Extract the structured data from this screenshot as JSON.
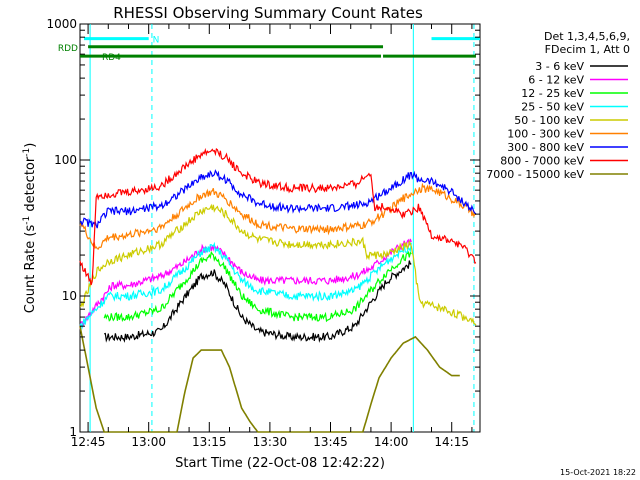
{
  "chart_data": {
    "type": "line",
    "title": "RHESSI Observing Summary Count Rates",
    "xlabel": "Start Time (22-Oct-08 12:42:22)",
    "ylabel_main": "Count Rate (s",
    "ylabel_sup1": "-1",
    "ylabel_mid": " detector",
    "ylabel_sup2": "-1",
    "ylabel_end": ")",
    "y_scale": "log",
    "ylim": [
      1,
      1000
    ],
    "xlim_minutes": [
      -2,
      97
    ],
    "x_ticks": [
      {
        "min": 0,
        "label": "12:45"
      },
      {
        "min": 15,
        "label": "13:00"
      },
      {
        "min": 30,
        "label": "13:15"
      },
      {
        "min": 45,
        "label": "13:30"
      },
      {
        "min": 60,
        "label": "13:45"
      },
      {
        "min": 75,
        "label": "14:00"
      },
      {
        "min": 90,
        "label": "14:15"
      }
    ],
    "y_ticks": [
      {
        "v": 1,
        "label": "1"
      },
      {
        "v": 10,
        "label": "10"
      },
      {
        "v": 100,
        "label": "100"
      },
      {
        "v": 1000,
        "label": "1000"
      }
    ],
    "legend_header": [
      "Det 1,3,4,5,6,9,",
      "FDecim 1, Att 0"
    ],
    "legend_position": "right, outside plot",
    "timestamp": "15-Oct-2021 18:22",
    "flags": [
      {
        "label": "N",
        "color": "#00ffff",
        "segments": [
          [
            -1,
            15
          ],
          [
            85,
            97
          ]
        ]
      },
      {
        "label": "RDD",
        "color": "#008000",
        "segments": [
          [
            0,
            73
          ]
        ]
      },
      {
        "label": "RD4",
        "color": "#008000",
        "segments": [
          [
            -2,
            72.5
          ],
          [
            73,
            96
          ]
        ]
      }
    ],
    "vertical_lines": [
      {
        "min": 0.5,
        "style": "solid",
        "color": "#00ffff"
      },
      {
        "min": 15.8,
        "style": "dashed",
        "color": "#00ffff"
      },
      {
        "min": 80.5,
        "style": "solid",
        "color": "#00ffff"
      },
      {
        "min": 95.5,
        "style": "dashed",
        "color": "#00ffff"
      }
    ],
    "series": [
      {
        "name": "3 - 6 keV",
        "color": "#000000",
        "points": [
          [
            4,
            5
          ],
          [
            10,
            5
          ],
          [
            18,
            5.5
          ],
          [
            23,
            9
          ],
          [
            28,
            14
          ],
          [
            31,
            15
          ],
          [
            34,
            12
          ],
          [
            38,
            7
          ],
          [
            42,
            5.5
          ],
          [
            50,
            5
          ],
          [
            60,
            5
          ],
          [
            66,
            6
          ],
          [
            70,
            9
          ],
          [
            74,
            13
          ],
          [
            78,
            16
          ],
          [
            80,
            17.5
          ]
        ]
      },
      {
        "name": "6 - 12 keV",
        "color": "#ff00ff",
        "points": [
          [
            -2,
            6
          ],
          [
            6,
            12
          ],
          [
            10,
            12
          ],
          [
            18,
            14
          ],
          [
            23,
            17
          ],
          [
            28,
            22
          ],
          [
            31,
            23
          ],
          [
            34,
            20
          ],
          [
            38,
            15
          ],
          [
            42,
            13
          ],
          [
            50,
            13
          ],
          [
            60,
            13
          ],
          [
            66,
            14
          ],
          [
            70,
            16
          ],
          [
            74,
            20
          ],
          [
            78,
            24
          ],
          [
            80,
            25
          ]
        ]
      },
      {
        "name": "12 - 25 keV",
        "color": "#00ff00",
        "points": [
          [
            4,
            7
          ],
          [
            10,
            7
          ],
          [
            18,
            8
          ],
          [
            23,
            12
          ],
          [
            28,
            18
          ],
          [
            31,
            20
          ],
          [
            34,
            16
          ],
          [
            38,
            10
          ],
          [
            42,
            8
          ],
          [
            50,
            7
          ],
          [
            60,
            7
          ],
          [
            66,
            8
          ],
          [
            70,
            11
          ],
          [
            74,
            15
          ],
          [
            78,
            19
          ],
          [
            80,
            20
          ]
        ]
      },
      {
        "name": "25 - 50 keV",
        "color": "#00ffff",
        "points": [
          [
            -2,
            6
          ],
          [
            5,
            10
          ],
          [
            10,
            10
          ],
          [
            18,
            11
          ],
          [
            23,
            15
          ],
          [
            28,
            21
          ],
          [
            31,
            23
          ],
          [
            34,
            19
          ],
          [
            38,
            13
          ],
          [
            42,
            11
          ],
          [
            50,
            10
          ],
          [
            60,
            10
          ],
          [
            66,
            11
          ],
          [
            70,
            14
          ],
          [
            74,
            18
          ],
          [
            78,
            22
          ],
          [
            80,
            23
          ]
        ]
      },
      {
        "name": "50 - 100 keV",
        "color": "#cccc00",
        "points": [
          [
            -2,
            8
          ],
          [
            2,
            15
          ],
          [
            5,
            18
          ],
          [
            10,
            20
          ],
          [
            18,
            24
          ],
          [
            23,
            32
          ],
          [
            28,
            42
          ],
          [
            31,
            45
          ],
          [
            34,
            40
          ],
          [
            38,
            30
          ],
          [
            42,
            26
          ],
          [
            50,
            24
          ],
          [
            60,
            24
          ],
          [
            68,
            25
          ],
          [
            69,
            20
          ],
          [
            74,
            20
          ],
          [
            78,
            23
          ],
          [
            80,
            24
          ],
          [
            82,
            9
          ],
          [
            88,
            8
          ],
          [
            93,
            7
          ],
          [
            96,
            6.5
          ]
        ]
      },
      {
        "name": "100 - 300 keV",
        "color": "#ff8000",
        "points": [
          [
            -2,
            35
          ],
          [
            2,
            22
          ],
          [
            5,
            27
          ],
          [
            10,
            28
          ],
          [
            18,
            32
          ],
          [
            23,
            42
          ],
          [
            28,
            55
          ],
          [
            31,
            58
          ],
          [
            34,
            52
          ],
          [
            38,
            40
          ],
          [
            42,
            34
          ],
          [
            50,
            31
          ],
          [
            60,
            31
          ],
          [
            68,
            33
          ],
          [
            70,
            35
          ],
          [
            74,
            42
          ],
          [
            78,
            52
          ],
          [
            82,
            62
          ],
          [
            86,
            60
          ],
          [
            90,
            52
          ],
          [
            94,
            44
          ],
          [
            96,
            38
          ]
        ]
      },
      {
        "name": "300 - 800 keV",
        "color": "#0000ff",
        "points": [
          [
            -2,
            36
          ],
          [
            2,
            33
          ],
          [
            5,
            42
          ],
          [
            10,
            42
          ],
          [
            18,
            46
          ],
          [
            23,
            58
          ],
          [
            28,
            75
          ],
          [
            31,
            80
          ],
          [
            34,
            72
          ],
          [
            38,
            56
          ],
          [
            42,
            48
          ],
          [
            50,
            44
          ],
          [
            60,
            44
          ],
          [
            68,
            47
          ],
          [
            70,
            50
          ],
          [
            74,
            60
          ],
          [
            78,
            72
          ],
          [
            80,
            78
          ],
          [
            82,
            72
          ],
          [
            86,
            68
          ],
          [
            90,
            58
          ],
          [
            94,
            46
          ],
          [
            96,
            40
          ]
        ]
      },
      {
        "name": "800 - 7000 keV",
        "color": "#ff0000",
        "points": [
          [
            -2,
            18
          ],
          [
            1,
            12
          ],
          [
            2,
            55
          ],
          [
            10,
            58
          ],
          [
            18,
            64
          ],
          [
            23,
            85
          ],
          [
            28,
            110
          ],
          [
            31,
            118
          ],
          [
            34,
            105
          ],
          [
            38,
            80
          ],
          [
            42,
            68
          ],
          [
            50,
            62
          ],
          [
            60,
            62
          ],
          [
            66,
            66
          ],
          [
            70,
            80
          ],
          [
            71,
            45
          ],
          [
            74,
            45
          ],
          [
            78,
            40
          ],
          [
            82,
            45
          ],
          [
            85,
            28
          ],
          [
            88,
            26
          ],
          [
            92,
            24
          ],
          [
            96,
            18
          ]
        ]
      },
      {
        "name": "7000 - 15000 keV",
        "color": "#808000",
        "points": [
          [
            -2,
            6
          ],
          [
            0,
            3
          ],
          [
            2,
            1.5
          ],
          [
            4,
            1
          ],
          [
            22,
            1
          ],
          [
            24,
            2
          ],
          [
            26,
            3.5
          ],
          [
            28,
            4
          ],
          [
            33,
            4
          ],
          [
            35,
            3
          ],
          [
            38,
            1.5
          ],
          [
            40,
            1.2
          ],
          [
            42,
            1
          ],
          [
            68,
            1
          ],
          [
            70,
            1.6
          ],
          [
            72,
            2.5
          ],
          [
            75,
            3.5
          ],
          [
            78,
            4.5
          ],
          [
            81,
            5
          ],
          [
            84,
            4
          ],
          [
            87,
            3
          ],
          [
            90,
            2.6
          ],
          [
            92,
            2.6
          ]
        ]
      }
    ]
  }
}
